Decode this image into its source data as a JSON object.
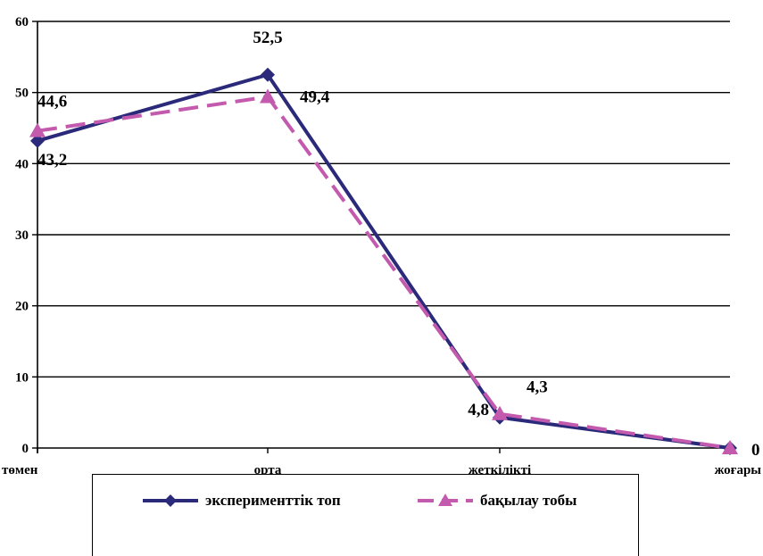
{
  "chart_data": {
    "type": "line",
    "categories": [
      "төмен",
      "орта",
      "жеткілікті",
      "жоғары"
    ],
    "ylim": [
      0,
      60
    ],
    "yticks": [
      0,
      10,
      20,
      30,
      40,
      50,
      60
    ],
    "grid": true,
    "legend_position": "bottom",
    "series": [
      {
        "name": "эксперименттік топ",
        "values": [
          43.2,
          52.5,
          4.3,
          0
        ],
        "labels": [
          "43,2",
          "52,5",
          "4,3",
          "0"
        ],
        "color": "#2b2a7a",
        "line_style": "solid",
        "marker": "diamond"
      },
      {
        "name": "бақылау тобы",
        "values": [
          44.6,
          49.4,
          4.8,
          0
        ],
        "labels": [
          "44,6",
          "49,4",
          "4,8",
          ""
        ],
        "color": "#c35aae",
        "line_style": "dashed",
        "marker": "triangle"
      }
    ]
  }
}
